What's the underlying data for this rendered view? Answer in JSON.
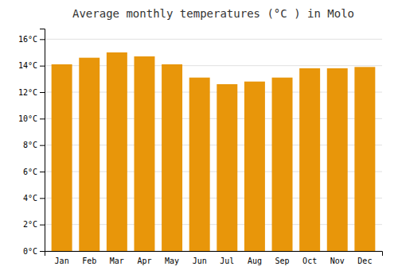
{
  "chart_data": {
    "type": "bar",
    "title": "Average monthly temperatures (°C ) in Molo",
    "categories": [
      "Jan",
      "Feb",
      "Mar",
      "Apr",
      "May",
      "Jun",
      "Jul",
      "Aug",
      "Sep",
      "Oct",
      "Nov",
      "Dec"
    ],
    "values": [
      14.1,
      14.6,
      15.0,
      14.7,
      14.1,
      13.1,
      12.6,
      12.8,
      13.1,
      13.8,
      13.8,
      13.9
    ],
    "color": "#E8960A",
    "ylim": [
      0,
      16.8
    ],
    "yticks": [
      {
        "value": 0,
        "label": "0°C"
      },
      {
        "value": 2,
        "label": "2°C"
      },
      {
        "value": 4,
        "label": "4°C"
      },
      {
        "value": 6,
        "label": "6°C"
      },
      {
        "value": 8,
        "label": "8°C"
      },
      {
        "value": 10,
        "label": "10°C"
      },
      {
        "value": 12,
        "label": "12°C"
      },
      {
        "value": 14,
        "label": "14°C"
      },
      {
        "value": 16,
        "label": "16°C"
      }
    ],
    "grid": true
  }
}
